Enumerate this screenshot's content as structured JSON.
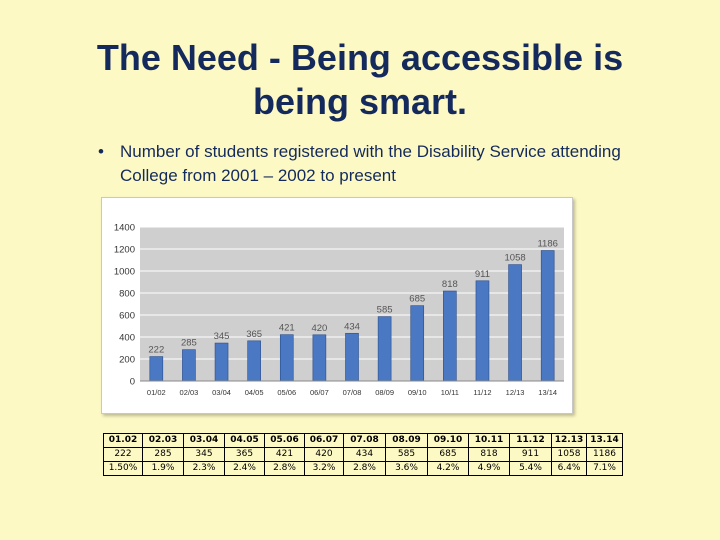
{
  "slide": {
    "title_line1": "The Need - Being accessible is",
    "title_line2": "being smart.",
    "bullet_marker": "•",
    "bullet_text": "Number of students registered with the Disability Service attending College from 2001 – 2002 to present"
  },
  "chart_data": {
    "type": "bar",
    "categories": [
      "01/02",
      "02/03",
      "03/04",
      "04/05",
      "05/06",
      "06/07",
      "07/08",
      "08/09",
      "09/10",
      "10/11",
      "11/12",
      "12/13",
      "13/14"
    ],
    "values": [
      222,
      285,
      345,
      365,
      421,
      420,
      434,
      585,
      685,
      818,
      911,
      1058,
      1186
    ],
    "ylim": [
      0,
      1400
    ],
    "yticks": [
      0,
      200,
      400,
      600,
      800,
      1000,
      1200,
      1400
    ],
    "grid": true,
    "legend": "none",
    "colors": {
      "bar": "#4a78c2",
      "bar_edge": "#2a4d8c",
      "plot_background": "#cfcfcf",
      "grid": "#ffffff",
      "label": "#555555"
    }
  },
  "table": {
    "years": [
      "01.02",
      "02.03",
      "03.04",
      "04.05",
      "05.06",
      "06.07",
      "07.08",
      "08.09",
      "09.10",
      "10.11",
      "11.12",
      "12.13",
      "13.14"
    ],
    "counts": [
      "222",
      "285",
      "345",
      "365",
      "421",
      "420",
      "434",
      "585",
      "685",
      "818",
      "911",
      "1058",
      "1186"
    ],
    "percents": [
      "1.50%",
      "1.9%",
      "2.3%",
      "2.4%",
      "2.8%",
      "3.2%",
      "2.8%",
      "3.6%",
      "4.2%",
      "4.9%",
      "5.4%",
      "6.4%",
      "7.1%"
    ]
  }
}
